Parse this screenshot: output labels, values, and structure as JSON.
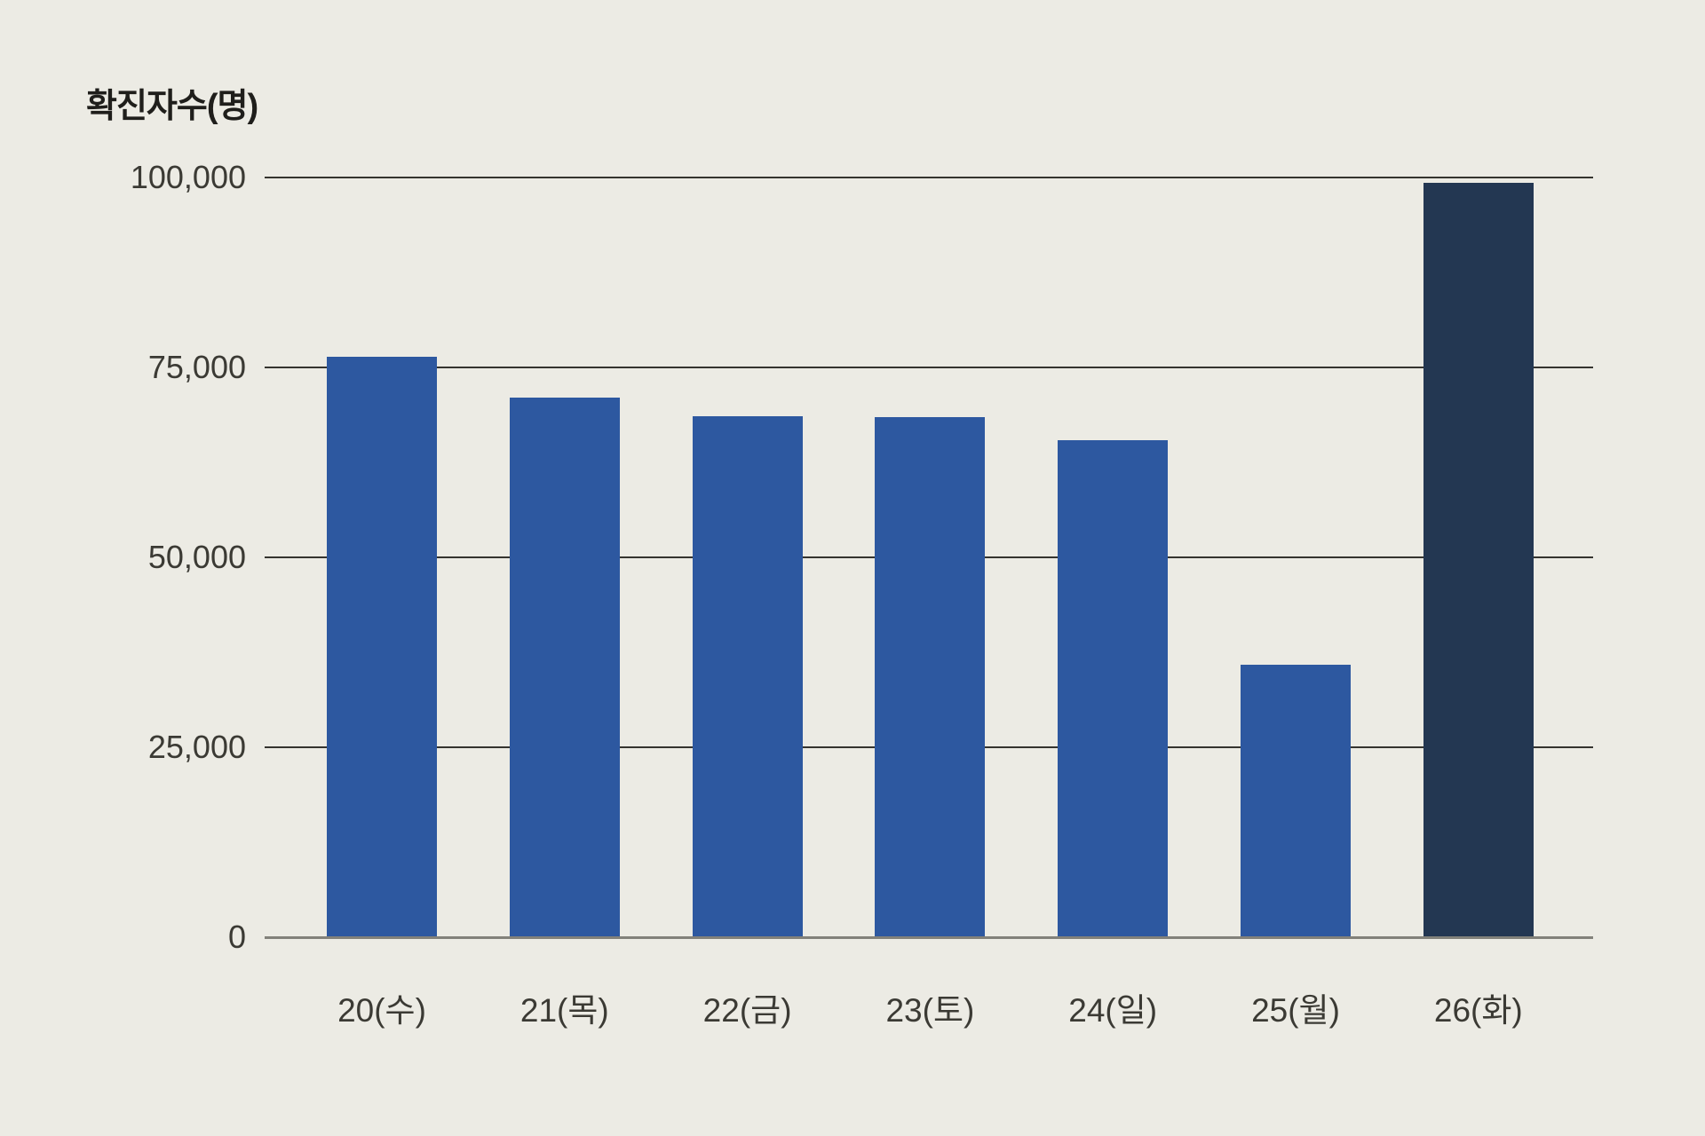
{
  "chart_data": {
    "type": "bar",
    "title": "확진자수(명)",
    "xlabel": "",
    "ylabel": "확진자수(명)",
    "categories": [
      "20(수)",
      "21(목)",
      "22(금)",
      "23(토)",
      "24(일)",
      "25(월)",
      "26(화)"
    ],
    "values": [
      76400,
      71000,
      68600,
      68400,
      65400,
      35900,
      99300
    ],
    "ylim": [
      0,
      100000
    ],
    "yticks": [
      {
        "value": 0,
        "label": "0"
      },
      {
        "value": 25000,
        "label": "25,000"
      },
      {
        "value": 50000,
        "label": "50,000"
      },
      {
        "value": 75000,
        "label": "75,000"
      },
      {
        "value": 100000,
        "label": "100,000"
      }
    ],
    "grid": true,
    "legend_position": "none",
    "colors": {
      "background": "#ECEBE4",
      "bar": "#2D58A0",
      "highlight_bar": "#233752",
      "gridline": "#35342F",
      "axis_line": "#82817A",
      "title_text": "#1F1E1B",
      "tick_text": "#3B3A34"
    },
    "highlight_index": 6
  }
}
